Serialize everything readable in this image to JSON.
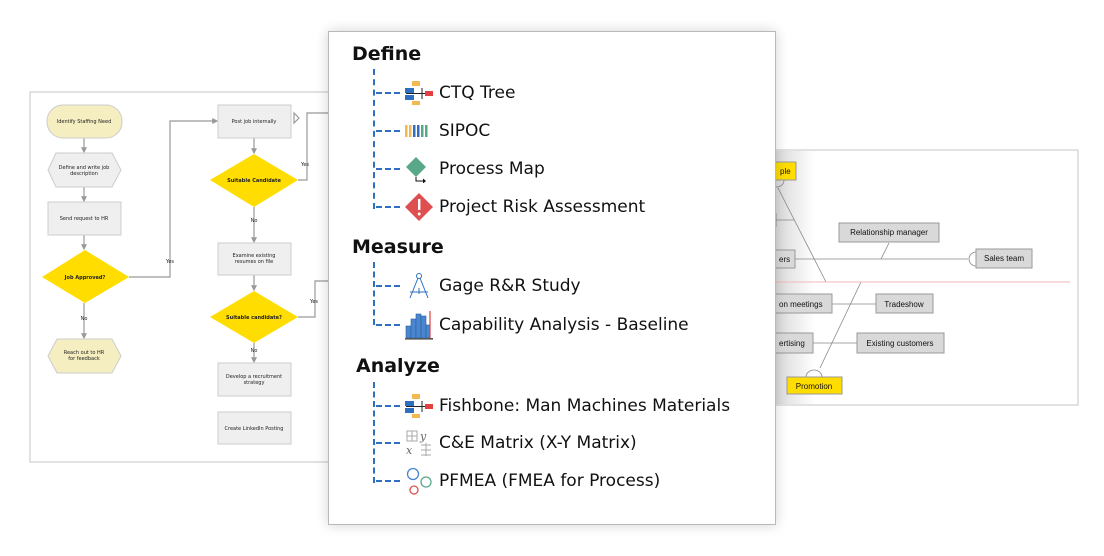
{
  "flowchart": {
    "start": "Identify Staffing Need",
    "define": [
      "Define and write job",
      "description"
    ],
    "send": "Send request to HR",
    "approved": "Job Approved?",
    "reach": [
      "Reach out to HR",
      "for feedback"
    ],
    "post": "Post job internally",
    "suitable1": "Suitable Candidate",
    "examine": [
      "Examine existing",
      "resumes on file"
    ],
    "suitable2": "Suitable candidate?",
    "develop": [
      "Develop a recruitment",
      "strategy"
    ],
    "linkedin": "Create LinkedIn Posting",
    "yes": "Yes",
    "no": "No"
  },
  "fishbone": {
    "people": "ple",
    "customers": "ers",
    "relationship": "Relationship manager",
    "sales": "Sales team",
    "meetings": "on meetings",
    "tradeshow": "Tradeshow",
    "advertising": "ertising",
    "existing": "Existing customers",
    "promotion": "Promotion"
  },
  "menu": {
    "sections": [
      {
        "title": "Define",
        "items": [
          {
            "label": "CTQ Tree",
            "icon": "ctq-tree-icon"
          },
          {
            "label": "SIPOC",
            "icon": "sipoc-icon"
          },
          {
            "label": "Process Map",
            "icon": "process-map-icon"
          },
          {
            "label": "Project Risk Assessment",
            "icon": "risk-icon"
          }
        ]
      },
      {
        "title": "Measure",
        "items": [
          {
            "label": "Gage R&R Study",
            "icon": "compass-icon"
          },
          {
            "label": "Capability Analysis - Baseline",
            "icon": "histogram-icon"
          }
        ]
      },
      {
        "title": "Analyze",
        "items": [
          {
            "label": "Fishbone: Man Machines Materials",
            "icon": "fishbone-icon"
          },
          {
            "label": "C&E Matrix (X-Y Matrix)",
            "icon": "matrix-icon"
          },
          {
            "label": "PFMEA (FMEA for Process)",
            "icon": "pfmea-icon"
          }
        ]
      }
    ]
  },
  "colors": {
    "accent_blue": "#2f6fbf",
    "decision_yellow": "#ffdd00",
    "terminal_tan": "#f5eec0"
  }
}
